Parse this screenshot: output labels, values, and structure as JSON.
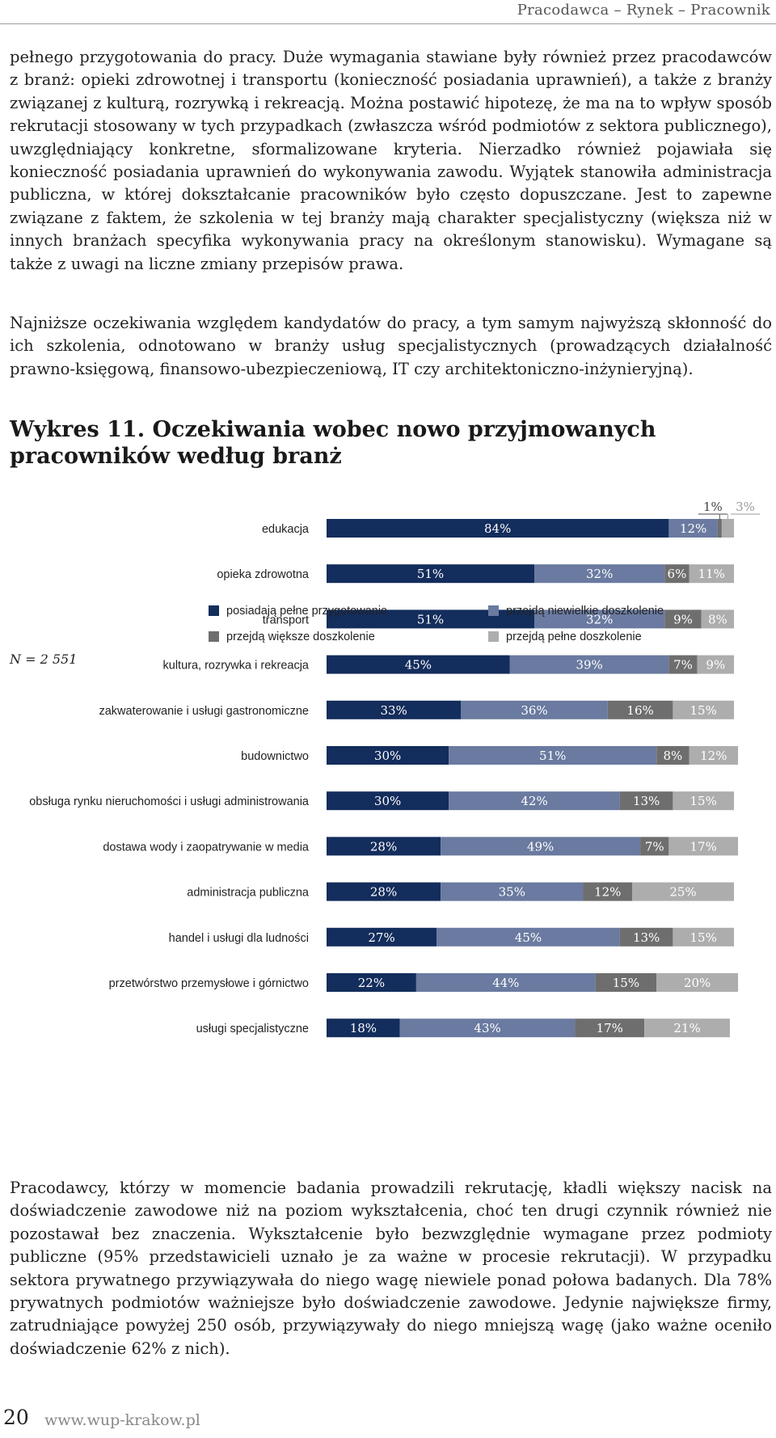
{
  "running_head": "Pracodawca – Rynek – Pracownik",
  "paragraph1": "pełnego przygotowania do pracy. Duże wymagania stawiane były również przez pracodawców z branż: opieki zdrowotnej i transportu (konieczność posiadania uprawnień), a także z branży związanej z kulturą, rozrywką i rekreacją. Można postawić hipotezę, że ma na to wpływ sposób rekrutacji stosowany w tych przypadkach (zwłaszcza wśród podmiotów z sektora publicznego), uwzględniający konkretne, sformalizowane kryteria. Nierzadko również pojawiała się konieczność posiadania uprawnień do wykonywania zawodu. Wyjątek stanowiła administracja publiczna, w której dokształcanie pracowników było często dopuszczane. Jest to zapewne związane z faktem, że szkolenia w tej branży mają charakter specjalistyczny (większa niż w innych branżach specyfika wykonywania pracy na określonym stanowisku). Wymagane są także z uwagi na liczne zmiany przepisów prawa.",
  "paragraph2": "Najniższe oczekiwania względem kandydatów do pracy, a tym samym najwyższą skłonność do ich szkolenia, odnotowano w branży usług specjalistycznych (prowadzących działalność prawno-księgową, finansowo-ubezpieczeniową, IT czy architektoniczno-inżynieryjną).",
  "chart_title": "Wykres 11. Oczekiwania wobec nowo przyjmowanych pracowników według branż",
  "chart_data": {
    "type": "bar",
    "orientation": "horizontal",
    "stacked": true,
    "unit": "%",
    "categories": [
      "edukacja",
      "opieka zdrowotna",
      "transport",
      "kultura, rozrywka i rekreacja",
      "zakwaterowanie i usługi gastronomiczne",
      "budownictwo",
      "obsługa rynku nieruchomości i usługi administrowania",
      "dostawa wody i zaopatrywanie w media",
      "administracja publiczna",
      "handel i usługi dla ludności",
      "przetwórstwo przemysłowe i górnictwo",
      "usługi specjalistyczne"
    ],
    "series": [
      {
        "name": "posiadają pełne przygotowanie",
        "color": "#132d5c",
        "values": [
          84,
          51,
          51,
          45,
          33,
          30,
          30,
          28,
          28,
          27,
          22,
          18
        ]
      },
      {
        "name": "przejdą niewielkie doszkolenie",
        "color": "#6a7aa0",
        "values": [
          12,
          32,
          32,
          39,
          36,
          51,
          42,
          49,
          35,
          45,
          44,
          43
        ]
      },
      {
        "name": "przejdą większe doszkolenie",
        "color": "#6e6e6e",
        "values": [
          1,
          6,
          9,
          7,
          16,
          8,
          13,
          7,
          12,
          13,
          15,
          17
        ]
      },
      {
        "name": "przejdą pełne doszkolenie",
        "color": "#adadad",
        "values": [
          3,
          11,
          8,
          9,
          15,
          12,
          15,
          17,
          25,
          15,
          20,
          21
        ]
      }
    ],
    "xlim": [
      0,
      100
    ],
    "legend_position": "bottom",
    "note": "N = 2 551"
  },
  "paragraph3": "Pracodawcy, którzy w momencie badania prowadzili rekrutację, kładli większy nacisk na doświadczenie zawodowe niż na poziom wykształcenia, choć ten drugi czynnik również nie pozostawał bez znaczenia. Wykształcenie było bezwzględnie wymagane przez podmioty publiczne (95% przedstawicieli uznało je za ważne w procesie rekrutacji). W przypadku sektora prywatnego przywiązywała do niego wagę niewiele ponad połowa badanych. Dla 78% prywatnych podmiotów ważniejsze było doświadczenie zawodowe. Jedynie największe firmy, zatrudniające powyżej 250 osób, przywiązywały do niego mniejszą wagę (jako ważne oceniło doświadczenie 62% z nich).",
  "page_number": "20",
  "website": "www.wup-krakow.pl"
}
